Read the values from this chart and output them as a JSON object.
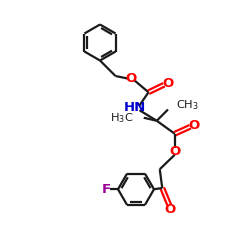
{
  "bg_color": "#ffffff",
  "bond_color": "#1a1a1a",
  "O_color": "#ff0000",
  "N_color": "#0000cc",
  "F_color": "#990099",
  "lw": 1.6,
  "ring_r": 0.72,
  "fig_w": 2.5,
  "fig_h": 2.5,
  "dpi": 100,
  "xlim": [
    0,
    10
  ],
  "ylim": [
    0,
    10
  ]
}
